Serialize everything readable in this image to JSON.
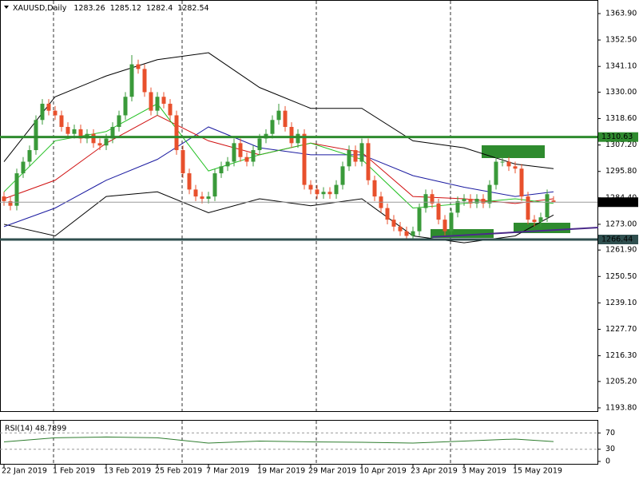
{
  "chart_data": [
    {
      "type": "candlestick",
      "title": "XAUUSD,Daily",
      "categories": [
        "22 Jan 2019",
        null,
        null,
        null,
        null,
        null,
        null,
        null,
        "1 Feb 2019",
        null,
        null,
        null,
        null,
        null,
        null,
        null,
        "13 Feb 2019",
        null,
        null,
        null,
        null,
        null,
        null,
        null,
        "25 Feb 2019",
        null,
        null,
        null,
        null,
        null,
        null,
        null,
        "7 Mar 2019",
        null,
        null,
        null,
        null,
        null,
        null,
        null,
        "19 Mar 2019",
        null,
        null,
        null,
        null,
        null,
        null,
        null,
        "29 Mar 2019",
        null,
        null,
        null,
        null,
        null,
        null,
        null,
        "10 Apr 2019",
        null,
        null,
        null,
        null,
        null,
        null,
        null,
        "23 Apr 2019",
        null,
        null,
        null,
        null,
        null,
        null,
        null,
        "3 May 2019",
        null,
        null,
        null,
        null,
        null,
        null,
        null,
        "15 May 2019",
        null,
        null,
        null,
        null,
        null,
        null
      ],
      "open": [
        1285,
        1283,
        1281,
        1295,
        1300,
        1305,
        1318,
        1325,
        1322,
        1320,
        1315,
        1312,
        1314,
        1310,
        1312,
        1308,
        1307,
        1310,
        1315,
        1320,
        1328,
        1342,
        1340,
        1330,
        1322,
        1328,
        1325,
        1320,
        1305,
        1295,
        1288,
        1285,
        1284,
        1285,
        1295,
        1298,
        1300,
        1308,
        1302,
        1300,
        1305,
        1310,
        1312,
        1318,
        1322,
        1315,
        1308,
        1312,
        1290,
        1288,
        1286,
        1287,
        1286,
        1290,
        1298,
        1305,
        1300,
        1308,
        1292,
        1285,
        1280,
        1275,
        1272,
        1270,
        1268,
        1270,
        1280,
        1286,
        1282,
        1275,
        1270,
        1278,
        1283,
        1284,
        1282,
        1284,
        1282,
        1290,
        1300,
        1300,
        1298,
        1297,
        1285,
        1275,
        1274,
        1276,
        1283.26
      ],
      "high": [
        1287,
        1285,
        1297,
        1302,
        1307,
        1320,
        1327,
        1327,
        1324,
        1322,
        1317,
        1316,
        1316,
        1314,
        1314,
        1310,
        1312,
        1317,
        1322,
        1330,
        1346,
        1344,
        1342,
        1332,
        1330,
        1330,
        1327,
        1322,
        1307,
        1297,
        1290,
        1287,
        1287,
        1297,
        1300,
        1302,
        1310,
        1310,
        1304,
        1307,
        1312,
        1314,
        1320,
        1325,
        1324,
        1317,
        1314,
        1314,
        1292,
        1290,
        1289,
        1289,
        1292,
        1300,
        1307,
        1307,
        1310,
        1310,
        1294,
        1287,
        1282,
        1277,
        1274,
        1272,
        1272,
        1282,
        1288,
        1288,
        1284,
        1277,
        1280,
        1285,
        1286,
        1286,
        1286,
        1286,
        1292,
        1302,
        1302,
        1302,
        1300,
        1299,
        1287,
        1277,
        1278,
        1288,
        1285.12
      ],
      "low": [
        1281,
        1279,
        1279,
        1293,
        1298,
        1303,
        1316,
        1320,
        1318,
        1313,
        1310,
        1310,
        1308,
        1308,
        1306,
        1305,
        1305,
        1308,
        1313,
        1318,
        1326,
        1338,
        1328,
        1320,
        1320,
        1323,
        1318,
        1303,
        1293,
        1286,
        1283,
        1282,
        1282,
        1283,
        1293,
        1296,
        1298,
        1300,
        1298,
        1298,
        1303,
        1308,
        1310,
        1316,
        1313,
        1306,
        1306,
        1288,
        1286,
        1284,
        1284,
        1284,
        1284,
        1288,
        1296,
        1298,
        1298,
        1290,
        1283,
        1278,
        1273,
        1270,
        1268,
        1266,
        1266,
        1268,
        1278,
        1280,
        1273,
        1268,
        1268,
        1276,
        1281,
        1280,
        1280,
        1280,
        1280,
        1288,
        1298,
        1296,
        1295,
        1283,
        1273,
        1272,
        1272,
        1274,
        1282.4
      ],
      "close": [
        1283,
        1281,
        1295,
        1300,
        1305,
        1318,
        1325,
        1322,
        1320,
        1315,
        1312,
        1314,
        1310,
        1312,
        1308,
        1307,
        1310,
        1315,
        1320,
        1328,
        1342,
        1340,
        1330,
        1322,
        1328,
        1325,
        1320,
        1305,
        1295,
        1288,
        1285,
        1284,
        1285,
        1295,
        1298,
        1300,
        1308,
        1302,
        1300,
        1305,
        1310,
        1312,
        1318,
        1322,
        1315,
        1308,
        1312,
        1290,
        1288,
        1286,
        1287,
        1286,
        1290,
        1298,
        1305,
        1300,
        1308,
        1292,
        1285,
        1280,
        1275,
        1272,
        1270,
        1268,
        1270,
        1280,
        1286,
        1282,
        1275,
        1270,
        1278,
        1283,
        1284,
        1282,
        1284,
        1282,
        1290,
        1300,
        1300,
        1298,
        1297,
        1285,
        1275,
        1274,
        1276,
        1286,
        1282.54
      ],
      "up_color": "#3a9a3a",
      "down_color": "#e8502c",
      "ylim": [
        1192.4,
        1369.75
      ],
      "yticks": [
        {
          "value": 1363.9,
          "label": "1363.90"
        },
        {
          "value": 1352.5,
          "label": "1352.50"
        },
        {
          "value": 1341.1,
          "label": "1341.10"
        },
        {
          "value": 1330,
          "label": "1330.00"
        },
        {
          "value": 1318.6,
          "label": "1318.60"
        },
        {
          "value": 1307.2,
          "label": "1307.20"
        },
        {
          "value": 1295.8,
          "label": "1295.80"
        },
        {
          "value": 1284.4,
          "label": "1284.40"
        },
        {
          "value": 1273,
          "label": "1273.00"
        },
        {
          "value": 1261.9,
          "label": "1261.90"
        },
        {
          "value": 1250.5,
          "label": "1250.50"
        },
        {
          "value": 1239.1,
          "label": "1239.10"
        },
        {
          "value": 1227.7,
          "label": "1227.70"
        },
        {
          "value": 1216.3,
          "label": "1216.30"
        },
        {
          "value": 1205.2,
          "label": "1205.20"
        },
        {
          "value": 1193.8,
          "label": "1193.80"
        }
      ],
      "levels": [
        {
          "value": 1310.63,
          "label": "1310.63",
          "color": "#2e8b2e",
          "text_color": "#000"
        },
        {
          "value": 1282.54,
          "label": "1282.54",
          "color": "#9a9a9a",
          "text_color": "#fff",
          "box_color": "#000"
        },
        {
          "value": 1266.44,
          "label": "1266.44",
          "color": "#2f4f4f",
          "text_color": "#fff"
        }
      ],
      "trendline": {
        "x": [
          67,
          93
        ],
        "values": [
          1267.5,
          1271.6
        ],
        "color": "#4b2a8a"
      },
      "indicators": [
        {
          "color": "#000",
          "x": [
            0,
            8,
            16,
            24,
            32,
            40,
            48,
            56,
            64,
            72,
            80,
            86
          ],
          "values": [
            1300,
            1328,
            1337,
            1344,
            1347,
            1332,
            1323,
            1323,
            1309,
            1306,
            1299,
            1297
          ]
        },
        {
          "color": "#000",
          "x": [
            0,
            8,
            16,
            24,
            32,
            40,
            48,
            56,
            64,
            72,
            80,
            86
          ],
          "values": [
            1273,
            1268,
            1285,
            1287,
            1278,
            1284,
            1281,
            1284,
            1268,
            1265,
            1268,
            1277
          ]
        },
        {
          "color": "#1a1aa0",
          "x": [
            0,
            8,
            16,
            24,
            32,
            40,
            48,
            56,
            64,
            72,
            80,
            86
          ],
          "values": [
            1272,
            1280,
            1292,
            1301,
            1315,
            1306,
            1303,
            1303,
            1294,
            1289,
            1285,
            1287
          ]
        },
        {
          "color": "#d01010",
          "x": [
            0,
            8,
            16,
            24,
            32,
            40,
            48,
            56,
            64,
            72,
            80,
            86
          ],
          "values": [
            1284,
            1292,
            1308,
            1320,
            1309,
            1303,
            1308,
            1304,
            1285,
            1284,
            1282,
            1284
          ]
        },
        {
          "color": "#20c020",
          "x": [
            0,
            8,
            16,
            24,
            32,
            40,
            48,
            56,
            64,
            72,
            80,
            86
          ],
          "values": [
            1287,
            1309,
            1313,
            1325,
            1296,
            1303,
            1308,
            1301,
            1280,
            1282,
            1284,
            1282
          ]
        }
      ]
    },
    {
      "type": "line",
      "title": "RSI(14) 48.7899",
      "color": "#2e7d2e",
      "x": [
        0,
        8,
        16,
        24,
        32,
        40,
        48,
        56,
        64,
        72,
        80,
        86
      ],
      "values": [
        48,
        58,
        60,
        58,
        45,
        50,
        48,
        47,
        45,
        50,
        55,
        48.7899
      ],
      "ylim": [
        0,
        100
      ],
      "yticks": [
        70,
        30,
        0
      ]
    }
  ]
}
